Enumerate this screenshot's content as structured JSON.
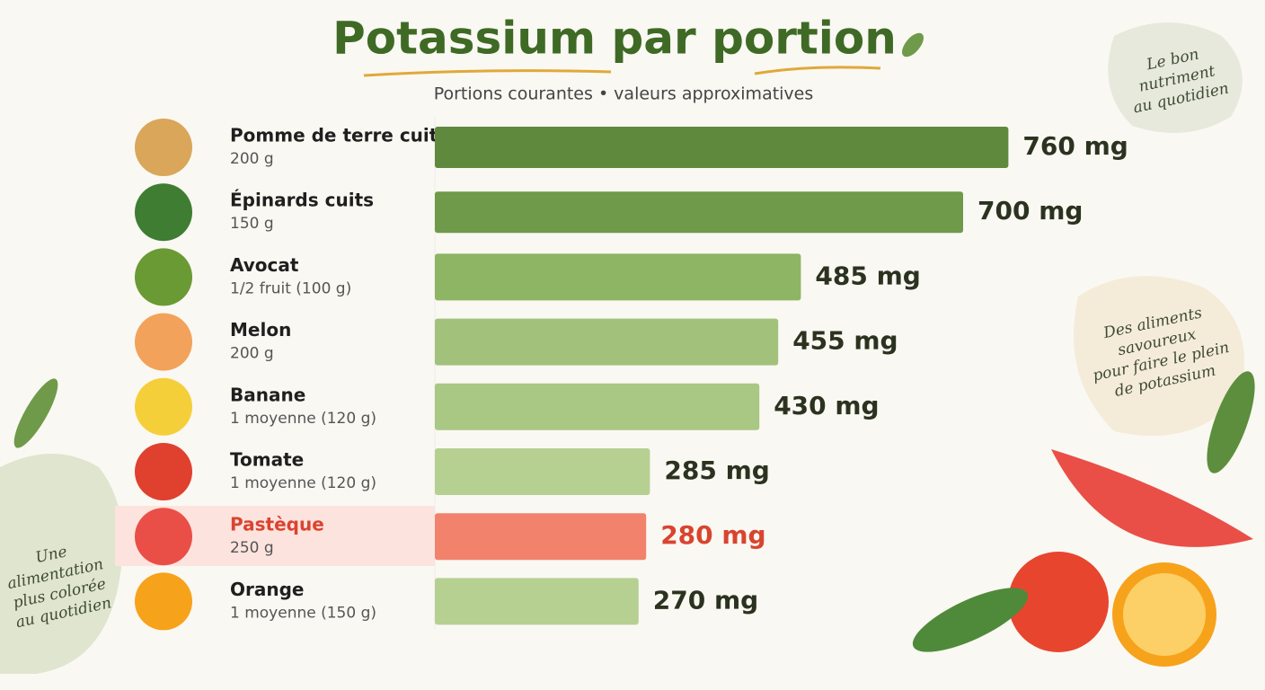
{
  "chart_data": {
    "type": "bar",
    "orientation": "horizontal",
    "title": "Potassium par portion",
    "subtitle": "Portions courantes • valeurs approximatives",
    "categories": [
      "Pomme de terre cuite",
      "Épinards cuits",
      "Avocat",
      "Melon",
      "Banane",
      "Tomate",
      "Pastèque",
      "Orange"
    ],
    "portions": [
      "200 g",
      "150 g",
      "1/2 fruit (100 g)",
      "200 g",
      "1 moyenne (120 g)",
      "1 moyenne (120 g)",
      "250 g",
      "1 moyenne (150 g)"
    ],
    "values": [
      760,
      700,
      485,
      455,
      430,
      285,
      280,
      270
    ],
    "value_labels": [
      "760 mg",
      "700 mg",
      "485 mg",
      "455 mg",
      "430 mg",
      "285 mg",
      "280 mg",
      "270 mg"
    ],
    "colors": [
      "#5f8a3d",
      "#6f9a49",
      "#8db564",
      "#a2c27c",
      "#a9c884",
      "#b6d092",
      "#f2826c",
      "#b6d092"
    ],
    "xlim": [
      0,
      800
    ],
    "annotations": [
      "Le bon nutriment au quotidien",
      "Des aliments savoureux pour faire le plein de potassium !",
      "Une alimentation plus colorée au quotidien"
    ]
  }
}
